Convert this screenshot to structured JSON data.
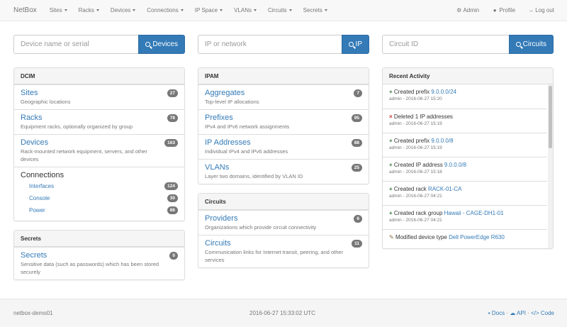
{
  "nav": {
    "brand": "NetBox",
    "menu": [
      "Sites",
      "Racks",
      "Devices",
      "Connections",
      "IP Space",
      "VLANs",
      "Circuits",
      "Secrets"
    ],
    "admin": "Admin",
    "profile": "Profile",
    "logout": "Log out"
  },
  "search": [
    {
      "placeholder": "Device name or serial",
      "button": "Devices"
    },
    {
      "placeholder": "IP or network",
      "button": "IP"
    },
    {
      "placeholder": "Circuit ID",
      "button": "Circuits"
    }
  ],
  "dcim": {
    "title": "DCIM",
    "items": [
      {
        "label": "Sites",
        "desc": "Geographic locations",
        "count": "27"
      },
      {
        "label": "Racks",
        "desc": "Equipment racks, optionally organized by group",
        "count": "78"
      },
      {
        "label": "Devices",
        "desc": "Rack-mounted network equipment, servers, and other devices",
        "count": "163"
      }
    ],
    "connections": {
      "label": "Connections",
      "items": [
        {
          "label": "Interfaces",
          "count": "124"
        },
        {
          "label": "Console",
          "count": "30"
        },
        {
          "label": "Power",
          "count": "86"
        }
      ]
    }
  },
  "secrets": {
    "title": "Secrets",
    "items": [
      {
        "label": "Secrets",
        "desc": "Sensitive data (such as passwords) which has been stored securely",
        "count": "0"
      }
    ]
  },
  "ipam": {
    "title": "IPAM",
    "items": [
      {
        "label": "Aggregates",
        "desc": "Top-level IP allocations",
        "count": "7"
      },
      {
        "label": "Prefixes",
        "desc": "IPv4 and IPv6 network assignments",
        "count": "95"
      },
      {
        "label": "IP Addresses",
        "desc": "Individual IPv4 and IPv6 addresses",
        "count": "88"
      },
      {
        "label": "VLANs",
        "desc": "Layer two domains, identified by VLAN ID",
        "count": "25"
      }
    ]
  },
  "circuits": {
    "title": "Circuits",
    "items": [
      {
        "label": "Providers",
        "desc": "Organizations which provide circuit connectivity",
        "count": "6"
      },
      {
        "label": "Circuits",
        "desc": "Communication links for Internet transit, peering, and other services",
        "count": "11"
      }
    ]
  },
  "activity": {
    "title": "Recent Activity",
    "items": [
      {
        "icon": "plus",
        "action": "Created prefix",
        "link": "9.0.0.0/24",
        "meta": "admin - 2016-06-27 15:20"
      },
      {
        "icon": "remove",
        "action": "Deleted 1 IP addresses",
        "link": "",
        "meta": "admin - 2016-06-27 15:19"
      },
      {
        "icon": "plus",
        "action": "Created prefix",
        "link": "9.0.0.0/8",
        "meta": "admin - 2016-06-27 15:19"
      },
      {
        "icon": "plus",
        "action": "Created IP address",
        "link": "9.0.0.0/8",
        "meta": "admin - 2016-06-27 15:18"
      },
      {
        "icon": "plus",
        "action": "Created rack",
        "link": "RACK-01-CA",
        "meta": "admin - 2016-06-27 04:21"
      },
      {
        "icon": "plus",
        "action": "Created rack group",
        "link": "Hawaii - CAGE-DH1-01",
        "meta": "admin - 2016-06-27 04:21"
      },
      {
        "icon": "pencil",
        "action": "Modified device type",
        "link": "Dell PowerEdge R630",
        "meta": ""
      }
    ]
  },
  "footer": {
    "host": "netbox-demo01",
    "time": "2016-06-27 15:33:02 UTC",
    "docs": "Docs",
    "api": "API",
    "code": "Code",
    "sep": "·"
  }
}
